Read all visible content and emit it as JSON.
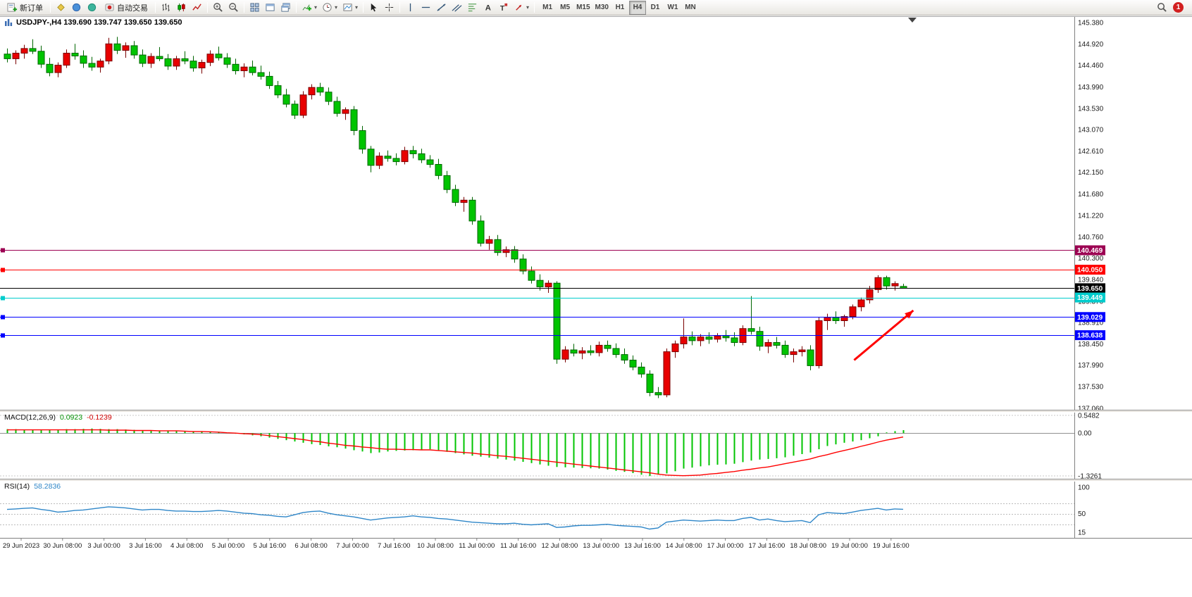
{
  "toolbar": {
    "new_order": "新订单",
    "auto_trading": "自动交易",
    "timeframes": [
      "M1",
      "M5",
      "M15",
      "M30",
      "H1",
      "H4",
      "D1",
      "W1",
      "MN"
    ],
    "active_timeframe": "H4",
    "notification_badge": "1"
  },
  "quote": {
    "line": "USDJPY-,H4 139.690 139.747 139.650 139.650"
  },
  "hlines": [
    {
      "price": 140.469,
      "label": "140.469",
      "color": "#9C0052",
      "marker": true
    },
    {
      "price": 140.05,
      "label": "140.050",
      "color": "#FF0000",
      "marker": true
    },
    {
      "price": 139.65,
      "label": "139.650",
      "color": "#000000",
      "marker": false,
      "current": true
    },
    {
      "price": 139.449,
      "label": "139.449",
      "color": "#00CCCC",
      "marker": true
    },
    {
      "price": 139.029,
      "label": "139.029",
      "color": "#0000FF",
      "marker": true
    },
    {
      "price": 138.638,
      "label": "138.638",
      "color": "#0000FF",
      "marker": true
    }
  ],
  "arrow": {
    "from_bar": 100.2,
    "from_price": 138.1,
    "to_bar": 107.2,
    "to_price": 139.17,
    "color": "#FF0000"
  },
  "colors": {
    "bull": "#E80000",
    "bull_border": "#7A0000",
    "bear": "#00C400",
    "bear_border": "#006600",
    "macd_hist": "#00C400",
    "macd_signal": "#FF0000",
    "rsi_line": "#2E86C8",
    "axis_text": "#1A1A1A"
  },
  "chart_data": {
    "type": "candlestick",
    "symbol": "USDJPY-",
    "timeframe": "H4",
    "ohlc_current": {
      "open": 139.69,
      "high": 139.747,
      "low": 139.65,
      "close": 139.65
    },
    "price_range": [
      137.06,
      145.38
    ],
    "price_axis": [
      "145.380",
      "144.920",
      "144.460",
      "143.990",
      "143.530",
      "143.070",
      "142.610",
      "142.150",
      "141.680",
      "141.220",
      "140.760",
      "140.300",
      "139.840",
      "139.370",
      "138.910",
      "138.450",
      "137.990",
      "137.530",
      "137.060"
    ],
    "time_axis": [
      "29 Jun 2023",
      "30 Jun 08:00",
      "3 Jul 00:00",
      "3 Jul 16:00",
      "4 Jul 08:00",
      "5 Jul 00:00",
      "5 Jul 16:00",
      "6 Jul 08:00",
      "7 Jul 00:00",
      "7 Jul 16:00",
      "10 Jul 08:00",
      "11 Jul 00:00",
      "11 Jul 16:00",
      "12 Jul 08:00",
      "13 Jul 00:00",
      "13 Jul 16:00",
      "14 Jul 08:00",
      "17 Jul 00:00",
      "17 Jul 16:00",
      "18 Jul 08:00",
      "19 Jul 00:00",
      "19 Jul 16:00"
    ],
    "candles": [
      [
        144.7,
        144.82,
        144.52,
        144.6
      ],
      [
        144.6,
        144.78,
        144.48,
        144.72
      ],
      [
        144.72,
        144.9,
        144.6,
        144.82
      ],
      [
        144.82,
        145.02,
        144.7,
        144.76
      ],
      [
        144.76,
        144.88,
        144.4,
        144.48
      ],
      [
        144.48,
        144.62,
        144.22,
        144.3
      ],
      [
        144.3,
        144.52,
        144.2,
        144.46
      ],
      [
        144.46,
        144.8,
        144.4,
        144.72
      ],
      [
        144.72,
        144.92,
        144.58,
        144.66
      ],
      [
        144.66,
        144.78,
        144.4,
        144.5
      ],
      [
        144.5,
        144.64,
        144.34,
        144.42
      ],
      [
        144.42,
        144.6,
        144.3,
        144.55
      ],
      [
        144.55,
        145.05,
        144.48,
        144.92
      ],
      [
        144.92,
        145.07,
        144.7,
        144.78
      ],
      [
        144.78,
        144.95,
        144.62,
        144.88
      ],
      [
        144.88,
        144.98,
        144.6,
        144.68
      ],
      [
        144.68,
        144.8,
        144.42,
        144.5
      ],
      [
        144.5,
        144.72,
        144.4,
        144.65
      ],
      [
        144.65,
        144.85,
        144.55,
        144.6
      ],
      [
        144.6,
        144.7,
        144.36,
        144.44
      ],
      [
        144.44,
        144.66,
        144.36,
        144.6
      ],
      [
        144.6,
        144.76,
        144.48,
        144.55
      ],
      [
        144.55,
        144.66,
        144.32,
        144.4
      ],
      [
        144.4,
        144.58,
        144.28,
        144.52
      ],
      [
        144.52,
        144.78,
        144.44,
        144.7
      ],
      [
        144.7,
        144.86,
        144.56,
        144.62
      ],
      [
        144.62,
        144.72,
        144.4,
        144.48
      ],
      [
        144.48,
        144.6,
        144.26,
        144.34
      ],
      [
        144.34,
        144.5,
        144.2,
        144.42
      ],
      [
        144.42,
        144.56,
        144.24,
        144.3
      ],
      [
        144.3,
        144.45,
        144.15,
        144.22
      ],
      [
        144.22,
        144.32,
        143.95,
        144.02
      ],
      [
        144.02,
        144.12,
        143.75,
        143.82
      ],
      [
        143.82,
        143.95,
        143.55,
        143.62
      ],
      [
        143.62,
        143.7,
        143.3,
        143.38
      ],
      [
        143.38,
        143.9,
        143.32,
        143.82
      ],
      [
        143.82,
        144.05,
        143.72,
        143.98
      ],
      [
        143.98,
        144.08,
        143.8,
        143.88
      ],
      [
        143.88,
        143.98,
        143.6,
        143.68
      ],
      [
        143.68,
        143.78,
        143.35,
        143.42
      ],
      [
        143.42,
        143.55,
        143.28,
        143.5
      ],
      [
        143.5,
        143.58,
        142.95,
        143.05
      ],
      [
        143.05,
        143.15,
        142.55,
        142.65
      ],
      [
        142.65,
        142.72,
        142.15,
        142.3
      ],
      [
        142.3,
        142.58,
        142.22,
        142.5
      ],
      [
        142.5,
        142.62,
        142.38,
        142.45
      ],
      [
        142.45,
        142.56,
        142.3,
        142.38
      ],
      [
        142.38,
        142.7,
        142.32,
        142.62
      ],
      [
        142.62,
        142.72,
        142.45,
        142.55
      ],
      [
        142.55,
        142.66,
        142.35,
        142.42
      ],
      [
        142.42,
        142.52,
        142.25,
        142.32
      ],
      [
        142.32,
        142.44,
        142.0,
        142.08
      ],
      [
        142.08,
        142.18,
        141.7,
        141.78
      ],
      [
        141.78,
        141.88,
        141.42,
        141.5
      ],
      [
        141.5,
        141.62,
        141.3,
        141.55
      ],
      [
        141.55,
        141.62,
        141.02,
        141.1
      ],
      [
        141.1,
        141.22,
        140.55,
        140.62
      ],
      [
        140.62,
        140.78,
        140.48,
        140.7
      ],
      [
        140.7,
        140.8,
        140.35,
        140.42
      ],
      [
        140.42,
        140.55,
        140.32,
        140.48
      ],
      [
        140.48,
        140.56,
        140.2,
        140.28
      ],
      [
        140.28,
        140.38,
        139.95,
        140.02
      ],
      [
        140.02,
        140.12,
        139.75,
        139.82
      ],
      [
        139.82,
        139.95,
        139.6,
        139.68
      ],
      [
        139.68,
        139.82,
        139.55,
        139.76
      ],
      [
        139.76,
        139.8,
        138.02,
        138.12
      ],
      [
        138.12,
        138.4,
        138.05,
        138.32
      ],
      [
        138.32,
        138.45,
        138.18,
        138.25
      ],
      [
        138.25,
        138.38,
        138.12,
        138.3
      ],
      [
        138.3,
        138.42,
        138.2,
        138.26
      ],
      [
        138.26,
        138.5,
        138.18,
        138.42
      ],
      [
        138.42,
        138.52,
        138.28,
        138.35
      ],
      [
        138.35,
        138.46,
        138.15,
        138.22
      ],
      [
        138.22,
        138.35,
        138.02,
        138.1
      ],
      [
        138.1,
        138.2,
        137.88,
        137.95
      ],
      [
        137.95,
        138.05,
        137.72,
        137.8
      ],
      [
        137.8,
        137.88,
        137.32,
        137.4
      ],
      [
        137.4,
        137.52,
        137.28,
        137.35
      ],
      [
        137.35,
        138.35,
        137.3,
        138.28
      ],
      [
        138.28,
        138.52,
        138.15,
        138.45
      ],
      [
        138.45,
        139.0,
        138.35,
        138.6
      ],
      [
        138.6,
        138.72,
        138.42,
        138.52
      ],
      [
        138.52,
        138.66,
        138.4,
        138.6
      ],
      [
        138.6,
        138.7,
        138.45,
        138.55
      ],
      [
        138.55,
        138.68,
        138.48,
        138.62
      ],
      [
        138.62,
        138.75,
        138.5,
        138.58
      ],
      [
        138.58,
        138.7,
        138.4,
        138.48
      ],
      [
        138.48,
        138.85,
        138.42,
        138.78
      ],
      [
        138.78,
        139.48,
        138.65,
        138.72
      ],
      [
        138.72,
        138.82,
        138.3,
        138.4
      ],
      [
        138.4,
        138.55,
        138.25,
        138.48
      ],
      [
        138.48,
        138.6,
        138.35,
        138.42
      ],
      [
        138.42,
        138.52,
        138.15,
        138.22
      ],
      [
        138.22,
        138.35,
        138.05,
        138.28
      ],
      [
        138.28,
        138.4,
        138.18,
        138.32
      ],
      [
        138.32,
        138.42,
        137.88,
        137.98
      ],
      [
        137.98,
        139.02,
        137.92,
        138.95
      ],
      [
        138.95,
        139.1,
        138.75,
        139.02
      ],
      [
        139.02,
        139.15,
        138.88,
        138.95
      ],
      [
        138.95,
        139.08,
        138.82,
        139.04
      ],
      [
        139.04,
        139.3,
        138.98,
        139.25
      ],
      [
        139.25,
        139.45,
        139.15,
        139.4
      ],
      [
        139.4,
        139.7,
        139.32,
        139.62
      ],
      [
        139.62,
        139.93,
        139.55,
        139.88
      ],
      [
        139.88,
        139.92,
        139.62,
        139.7
      ],
      [
        139.7,
        139.8,
        139.6,
        139.75
      ],
      [
        139.69,
        139.747,
        139.65,
        139.65
      ]
    ],
    "macd": {
      "label": "MACD(12,26,9)",
      "main_value": "0.0923",
      "signal_value": "-0.1239",
      "scale": [
        "0.5482",
        "0.00",
        "-1.3261"
      ],
      "range": [
        -1.3261,
        0.5482
      ],
      "hist": [
        0.12,
        0.12,
        0.11,
        0.11,
        0.1,
        0.1,
        0.11,
        0.12,
        0.12,
        0.13,
        0.14,
        0.13,
        0.12,
        0.12,
        0.11,
        0.1,
        0.09,
        0.08,
        0.08,
        0.07,
        0.06,
        0.06,
        0.05,
        0.05,
        0.04,
        0.04,
        0.01,
        -0.02,
        -0.04,
        -0.07,
        -0.1,
        -0.14,
        -0.18,
        -0.22,
        -0.26,
        -0.3,
        -0.34,
        -0.37,
        -0.41,
        -0.44,
        -0.48,
        -0.53,
        -0.57,
        -0.62,
        -0.6,
        -0.57,
        -0.55,
        -0.54,
        -0.53,
        -0.51,
        -0.5,
        -0.54,
        -0.58,
        -0.62,
        -0.66,
        -0.7,
        -0.73,
        -0.76,
        -0.79,
        -0.82,
        -0.85,
        -0.89,
        -0.93,
        -0.97,
        -1.01,
        -1.05,
        -1.06,
        -1.07,
        -1.08,
        -1.09,
        -1.1,
        -1.13,
        -1.17,
        -1.2,
        -1.24,
        -1.29,
        -1.33,
        -1.29,
        -1.25,
        -1.18,
        -1.1,
        -1.07,
        -1.03,
        -1.0,
        -0.98,
        -0.97,
        -0.95,
        -0.9,
        -0.85,
        -0.82,
        -0.8,
        -0.78,
        -0.75,
        -0.7,
        -0.65,
        -0.6,
        -0.5,
        -0.4,
        -0.35,
        -0.3,
        -0.26,
        -0.22,
        -0.16,
        -0.1,
        0.02,
        0.06,
        0.09
      ],
      "signal": [
        0.1,
        0.1,
        0.1,
        0.1,
        0.1,
        0.1,
        0.1,
        0.1,
        0.1,
        0.1,
        0.1,
        0.1,
        0.09,
        0.09,
        0.09,
        0.08,
        0.08,
        0.08,
        0.07,
        0.07,
        0.07,
        0.06,
        0.05,
        0.05,
        0.04,
        0.03,
        0.01,
        0.0,
        -0.02,
        -0.03,
        -0.05,
        -0.08,
        -0.11,
        -0.14,
        -0.17,
        -0.2,
        -0.24,
        -0.27,
        -0.31,
        -0.34,
        -0.38,
        -0.4,
        -0.43,
        -0.45,
        -0.48,
        -0.5,
        -0.5,
        -0.51,
        -0.51,
        -0.52,
        -0.52,
        -0.54,
        -0.56,
        -0.58,
        -0.6,
        -0.62,
        -0.65,
        -0.67,
        -0.7,
        -0.72,
        -0.75,
        -0.78,
        -0.81,
        -0.84,
        -0.87,
        -0.9,
        -0.93,
        -0.96,
        -0.99,
        -1.02,
        -1.05,
        -1.08,
        -1.11,
        -1.14,
        -1.17,
        -1.2,
        -1.23,
        -1.27,
        -1.3,
        -1.31,
        -1.32,
        -1.31,
        -1.3,
        -1.27,
        -1.25,
        -1.22,
        -1.19,
        -1.15,
        -1.12,
        -1.08,
        -1.05,
        -1.0,
        -0.95,
        -0.9,
        -0.85,
        -0.8,
        -0.73,
        -0.67,
        -0.6,
        -0.54,
        -0.48,
        -0.41,
        -0.35,
        -0.28,
        -0.22,
        -0.17,
        -0.12
      ]
    },
    "rsi": {
      "label": "RSI(14)",
      "value": "58.2836",
      "scale": [
        "100",
        "50",
        "15"
      ],
      "levels": [
        70,
        50,
        30
      ],
      "range": [
        15,
        100
      ],
      "values": [
        58,
        59,
        60,
        61,
        58,
        56,
        53,
        54,
        56,
        57,
        59,
        61,
        63,
        62,
        61,
        59,
        57,
        58,
        58,
        56,
        55,
        55,
        54,
        54,
        55,
        56,
        55,
        53,
        51,
        50,
        48,
        47,
        45,
        44,
        48,
        52,
        54,
        55,
        51,
        48,
        46,
        44,
        41,
        38,
        40,
        42,
        43,
        44,
        46,
        44,
        43,
        41,
        40,
        38,
        36,
        34,
        33,
        32,
        31,
        31,
        32,
        30,
        29,
        30,
        31,
        24,
        25,
        27,
        28,
        28,
        29,
        30,
        28,
        27,
        26,
        25,
        21,
        23,
        34,
        36,
        38,
        37,
        36,
        37,
        38,
        37,
        37,
        41,
        43,
        38,
        40,
        37,
        35,
        36,
        37,
        33,
        48,
        52,
        51,
        50,
        53,
        56,
        58,
        60,
        57,
        59,
        58.28
      ]
    }
  }
}
